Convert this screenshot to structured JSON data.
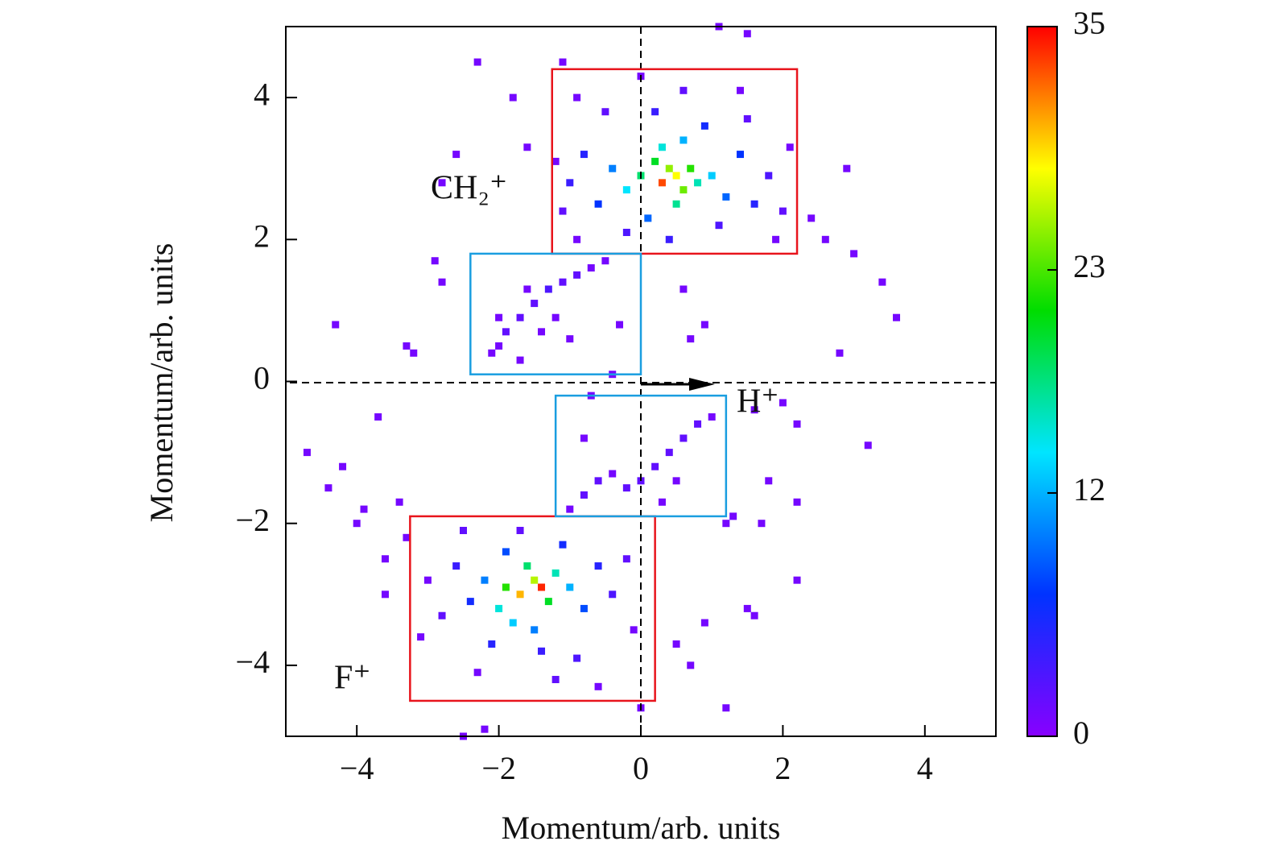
{
  "chart_data": {
    "type": "heatmap",
    "xlabel": "Momentum/arb. units",
    "ylabel": "Momentum/arb. units",
    "xlim": [
      -5,
      5
    ],
    "ylim": [
      -5,
      5
    ],
    "xticks": [
      {
        "value": -4,
        "label": "−4"
      },
      {
        "value": -2,
        "label": "−2"
      },
      0,
      2,
      4
    ],
    "yticks": [
      {
        "value": -4,
        "label": "−4"
      },
      {
        "value": -2,
        "label": "−2"
      },
      0,
      2,
      4
    ],
    "colormap": [
      "#8800ff",
      "#0033ff",
      "#00e5ff",
      "#00dd00",
      "#ffff00",
      "#ff0000"
    ],
    "colorbar": {
      "lim": [
        0,
        35
      ],
      "ticks": [
        0,
        12,
        23,
        35
      ]
    },
    "points": [
      [
        0.3,
        2.8,
        33
      ],
      [
        0.5,
        2.9,
        28
      ],
      [
        0.4,
        3.0,
        25
      ],
      [
        0.6,
        2.7,
        24
      ],
      [
        0.2,
        3.1,
        20
      ],
      [
        0.7,
        3.0,
        22
      ],
      [
        0.0,
        2.9,
        18
      ],
      [
        0.5,
        2.5,
        17
      ],
      [
        0.8,
        2.8,
        16
      ],
      [
        0.3,
        3.3,
        15
      ],
      [
        -0.2,
        2.7,
        14
      ],
      [
        1.0,
        2.9,
        13
      ],
      [
        0.6,
        3.4,
        12
      ],
      [
        -0.4,
        3.0,
        10
      ],
      [
        1.2,
        2.6,
        9
      ],
      [
        0.1,
        2.3,
        9
      ],
      [
        -0.6,
        2.5,
        7
      ],
      [
        1.4,
        3.2,
        7
      ],
      [
        0.9,
        3.6,
        6
      ],
      [
        -0.8,
        3.2,
        5
      ],
      [
        1.6,
        2.5,
        5
      ],
      [
        0.4,
        2.0,
        4
      ],
      [
        -1.0,
        2.8,
        4
      ],
      [
        0.2,
        3.8,
        4
      ],
      [
        1.8,
        2.9,
        3
      ],
      [
        -0.2,
        2.1,
        3
      ],
      [
        1.1,
        2.2,
        3
      ],
      [
        -1.1,
        2.4,
        2
      ],
      [
        2.0,
        2.4,
        2
      ],
      [
        0.6,
        4.1,
        2
      ],
      [
        -0.5,
        3.8,
        2
      ],
      [
        1.5,
        3.7,
        2
      ],
      [
        -1.2,
        3.1,
        1
      ],
      [
        2.1,
        3.3,
        1
      ],
      [
        0.0,
        4.3,
        1
      ],
      [
        1.9,
        2.0,
        1
      ],
      [
        -0.9,
        2.0,
        1
      ],
      [
        2.4,
        2.3,
        1
      ],
      [
        2.6,
        2.0,
        1
      ],
      [
        2.9,
        3.0,
        1
      ],
      [
        3.0,
        1.8,
        1
      ],
      [
        3.4,
        1.4,
        1
      ],
      [
        3.6,
        0.9,
        1
      ],
      [
        1.4,
        4.1,
        1
      ],
      [
        -0.9,
        4.0,
        1
      ],
      [
        1.1,
        5.0,
        1
      ],
      [
        1.5,
        4.9,
        1
      ],
      [
        -2.3,
        4.5,
        1
      ],
      [
        -1.1,
        4.5,
        1
      ],
      [
        -1.8,
        4.0,
        1
      ],
      [
        -1.6,
        3.3,
        1
      ],
      [
        -2.8,
        2.8,
        1
      ],
      [
        -2.6,
        3.2,
        1
      ],
      [
        -2.9,
        1.7,
        1
      ],
      [
        -2.8,
        1.4,
        1
      ],
      [
        -4.3,
        0.8,
        1
      ],
      [
        -3.3,
        0.5,
        1
      ],
      [
        -3.2,
        0.4,
        1
      ],
      [
        2.8,
        0.4,
        1
      ],
      [
        0.6,
        1.3,
        1
      ],
      [
        0.9,
        0.8,
        1
      ],
      [
        0.7,
        0.6,
        1
      ],
      [
        -2.0,
        0.5,
        1
      ],
      [
        -1.9,
        0.7,
        2
      ],
      [
        -1.7,
        0.9,
        2
      ],
      [
        -1.5,
        1.1,
        2
      ],
      [
        -1.3,
        1.3,
        3
      ],
      [
        -1.1,
        1.4,
        2
      ],
      [
        -0.9,
        1.5,
        2
      ],
      [
        -0.7,
        1.6,
        1
      ],
      [
        -0.5,
        1.7,
        1
      ],
      [
        -1.6,
        1.3,
        1
      ],
      [
        -2.0,
        0.9,
        1
      ],
      [
        -2.1,
        0.4,
        1
      ],
      [
        -1.7,
        0.3,
        1
      ],
      [
        -1.2,
        0.9,
        1
      ],
      [
        -0.3,
        0.8,
        1
      ],
      [
        -0.4,
        0.1,
        1
      ],
      [
        -1.4,
        0.7,
        1
      ],
      [
        -1.0,
        0.6,
        1
      ],
      [
        -1.0,
        -1.8,
        1
      ],
      [
        -0.8,
        -1.6,
        2
      ],
      [
        -0.6,
        -1.4,
        2
      ],
      [
        -0.4,
        -1.3,
        1
      ],
      [
        -0.2,
        -1.5,
        2
      ],
      [
        0.0,
        -1.4,
        2
      ],
      [
        0.2,
        -1.2,
        2
      ],
      [
        0.4,
        -1.0,
        2
      ],
      [
        0.6,
        -0.8,
        2
      ],
      [
        0.8,
        -0.6,
        2
      ],
      [
        1.0,
        -0.5,
        1
      ],
      [
        0.5,
        -1.4,
        1
      ],
      [
        0.3,
        -1.7,
        1
      ],
      [
        -0.7,
        -0.2,
        1
      ],
      [
        -0.8,
        -0.8,
        1
      ],
      [
        1.6,
        -0.4,
        1
      ],
      [
        2.2,
        -0.6,
        1
      ],
      [
        2.0,
        -0.3,
        1
      ],
      [
        3.2,
        -0.9,
        1
      ],
      [
        2.2,
        -1.7,
        1
      ],
      [
        1.8,
        -1.4,
        1
      ],
      [
        1.7,
        -2.0,
        1
      ],
      [
        1.2,
        -2.0,
        1
      ],
      [
        2.2,
        -2.8,
        1
      ],
      [
        1.3,
        -1.9,
        1
      ],
      [
        -1.4,
        -2.9,
        34
      ],
      [
        -1.7,
        -3.0,
        30
      ],
      [
        -1.5,
        -2.8,
        26
      ],
      [
        -1.9,
        -2.9,
        22
      ],
      [
        -1.3,
        -3.1,
        20
      ],
      [
        -1.6,
        -2.6,
        18
      ],
      [
        -1.2,
        -2.7,
        16
      ],
      [
        -2.0,
        -3.2,
        15
      ],
      [
        -1.8,
        -3.4,
        13
      ],
      [
        -1.0,
        -2.9,
        12
      ],
      [
        -2.2,
        -2.8,
        10
      ],
      [
        -1.5,
        -3.5,
        10
      ],
      [
        -0.8,
        -3.2,
        8
      ],
      [
        -1.9,
        -2.4,
        8
      ],
      [
        -2.4,
        -3.1,
        6
      ],
      [
        -1.1,
        -2.3,
        6
      ],
      [
        -0.6,
        -2.6,
        5
      ],
      [
        -2.1,
        -3.7,
        5
      ],
      [
        -1.4,
        -3.8,
        4
      ],
      [
        -2.6,
        -2.6,
        4
      ],
      [
        -0.4,
        -3.0,
        3
      ],
      [
        -0.9,
        -3.9,
        3
      ],
      [
        -2.8,
        -3.3,
        2
      ],
      [
        -1.7,
        -2.1,
        2
      ],
      [
        -0.2,
        -2.5,
        2
      ],
      [
        -2.5,
        -2.1,
        2
      ],
      [
        -1.2,
        -4.2,
        2
      ],
      [
        -3.0,
        -2.8,
        1
      ],
      [
        -0.1,
        -3.5,
        1
      ],
      [
        -2.3,
        -4.1,
        1
      ],
      [
        -0.6,
        -4.3,
        1
      ],
      [
        -3.1,
        -3.6,
        1
      ],
      [
        -3.3,
        -2.2,
        1
      ],
      [
        -3.6,
        -2.5,
        1
      ],
      [
        -4.0,
        -2.0,
        1
      ],
      [
        -3.9,
        -1.8,
        1
      ],
      [
        -4.2,
        -1.2,
        1
      ],
      [
        -4.4,
        -1.5,
        1
      ],
      [
        -3.7,
        -0.5,
        1
      ],
      [
        -4.7,
        -1.0,
        1
      ],
      [
        -3.4,
        -1.7,
        1
      ],
      [
        0.5,
        -3.7,
        1
      ],
      [
        0.7,
        -4.0,
        1
      ],
      [
        0.9,
        -3.4,
        1
      ],
      [
        1.5,
        -3.2,
        1
      ],
      [
        1.6,
        -3.3,
        1
      ],
      [
        1.2,
        -4.6,
        1
      ],
      [
        0.0,
        -4.6,
        1
      ],
      [
        -2.5,
        -5.0,
        1
      ],
      [
        -2.2,
        -4.9,
        1
      ],
      [
        -3.6,
        -3.0,
        1
      ]
    ],
    "boxes": [
      {
        "color": "#e8141c",
        "x": [
          -1.25,
          2.2
        ],
        "y": [
          1.8,
          4.4
        ]
      },
      {
        "color": "#e8141c",
        "x": [
          -3.25,
          0.2
        ],
        "y": [
          -4.5,
          -1.9
        ]
      },
      {
        "color": "#1a9ee0",
        "x": [
          -2.4,
          0.0
        ],
        "y": [
          0.1,
          1.8
        ]
      },
      {
        "color": "#1a9ee0",
        "x": [
          -1.2,
          1.2
        ],
        "y": [
          -1.9,
          -0.2
        ]
      }
    ],
    "labels": [
      {
        "text": "CH₂⁺",
        "color": "#e8141c"
      },
      {
        "text": "H⁺",
        "color": "#e8141c"
      },
      {
        "text": "F⁺",
        "color": "#e8141c"
      }
    ]
  }
}
